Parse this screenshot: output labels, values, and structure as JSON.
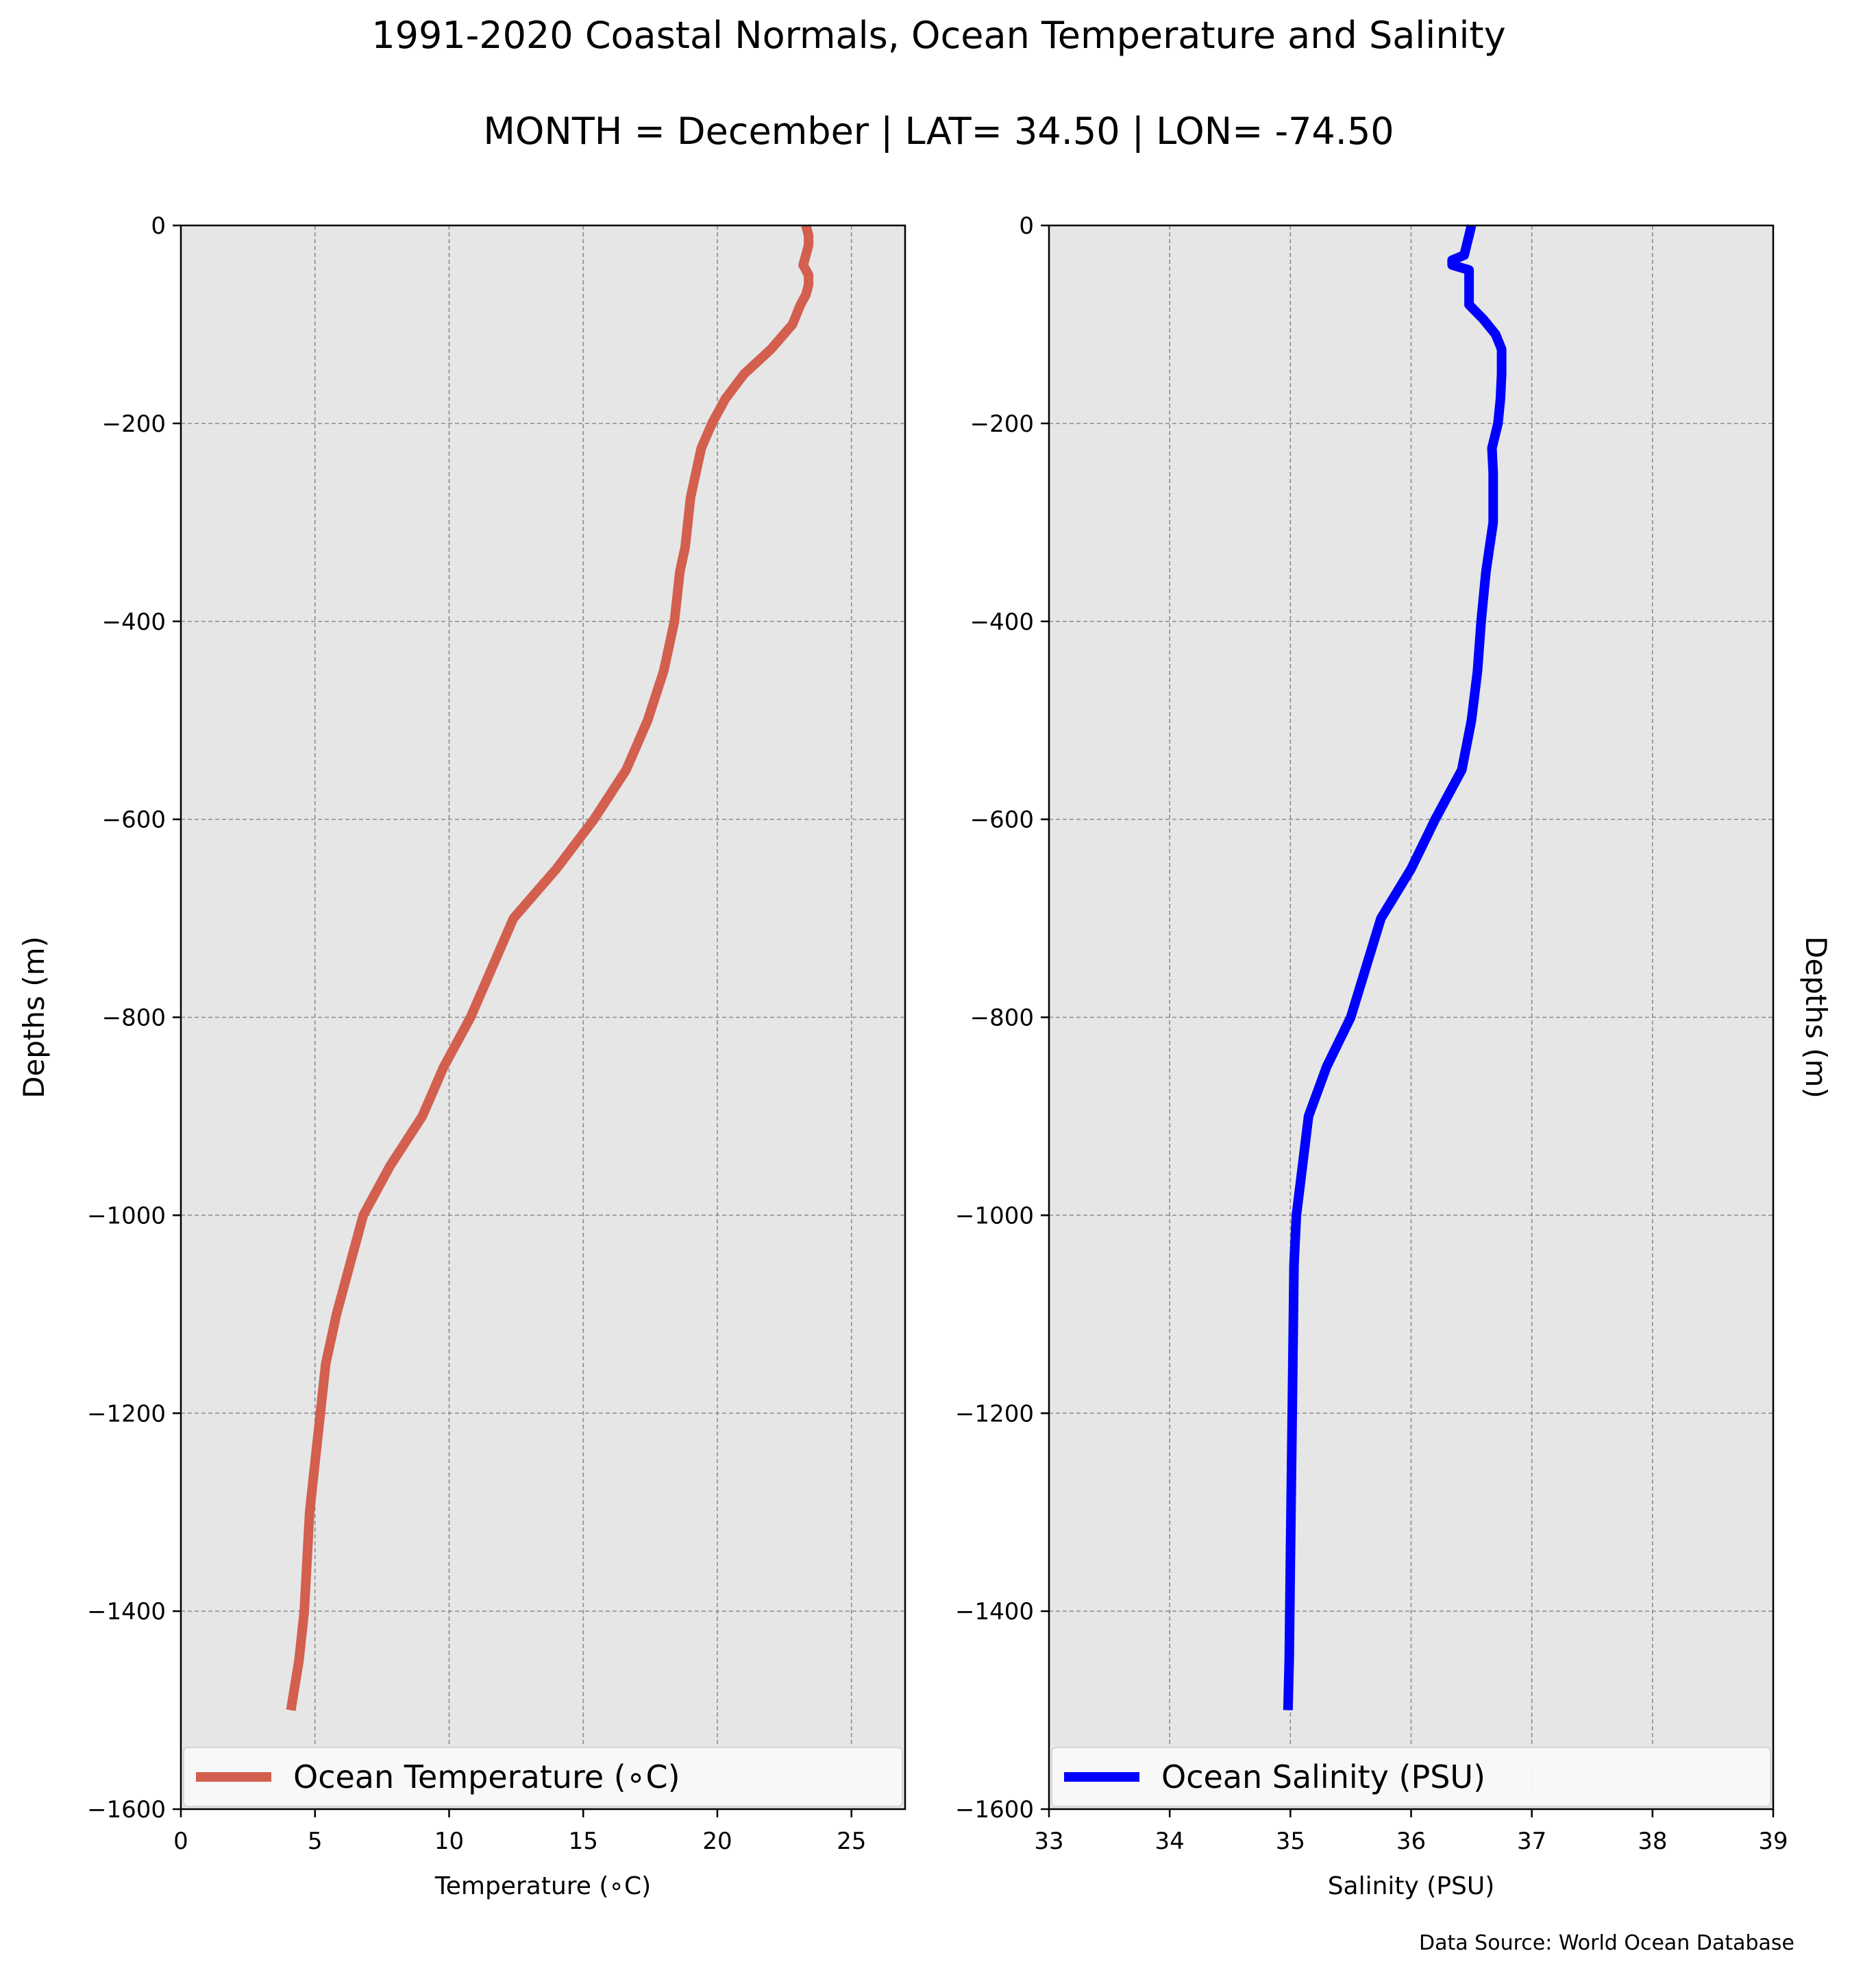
{
  "title": "1991-2020 Coastal Normals, Ocean Temperature and Salinity",
  "subtitle": "MONTH = December | LAT= 34.50 | LON= -74.50",
  "source": "Data Source: World Ocean Database",
  "colors": {
    "temperature": "#d35f4e",
    "salinity": "#0000ff",
    "axes_bg": "#e6e6e6",
    "grid": "#8c8c8c"
  },
  "chart_data": [
    {
      "type": "line",
      "xlabel": "Temperature ($^\\circ$C)",
      "xlabel_display": "Temperature (∘C)",
      "ylabel": "Depths (m)",
      "xlim": [
        0,
        27
      ],
      "ylim": [
        -1600,
        0
      ],
      "xticks": [
        0,
        5,
        10,
        15,
        20,
        25
      ],
      "yticks": [
        0,
        -200,
        -400,
        -600,
        -800,
        -1000,
        -1200,
        -1400,
        -1600
      ],
      "grid": true,
      "legend_position": "lower-center",
      "series": [
        {
          "name": "Ocean Temperature (∘C)",
          "color": "#d35f4e",
          "x": [
            23.3,
            23.4,
            23.4,
            23.3,
            23.2,
            23.4,
            23.4,
            23.3,
            23.1,
            22.8,
            22.0,
            21.0,
            20.3,
            19.8,
            19.4,
            19.0,
            18.8,
            18.6,
            18.4,
            18.0,
            17.4,
            16.6,
            15.4,
            14.0,
            12.4,
            10.8,
            9.8,
            9.0,
            7.8,
            6.8,
            6.3,
            5.8,
            5.4,
            5.0,
            4.8,
            4.6,
            4.4,
            4.1
          ],
          "y": [
            0,
            -10,
            -20,
            -30,
            -40,
            -50,
            -60,
            -70,
            -80,
            -100,
            -125,
            -150,
            -175,
            -200,
            -225,
            -275,
            -325,
            -350,
            -400,
            -450,
            -500,
            -550,
            -600,
            -650,
            -700,
            -800,
            -850,
            -900,
            -950,
            -1000,
            -1050,
            -1100,
            -1150,
            -1250,
            -1300,
            -1400,
            -1450,
            -1500
          ]
        }
      ]
    },
    {
      "type": "line",
      "xlabel": "Salinity (PSU)",
      "ylabel": "Depths (m)",
      "xlim": [
        33,
        39
      ],
      "ylim": [
        -1600,
        0
      ],
      "xticks": [
        33,
        34,
        35,
        36,
        37,
        38,
        39
      ],
      "yticks": [
        0,
        -200,
        -400,
        -600,
        -800,
        -1000,
        -1200,
        -1400,
        -1600
      ],
      "grid": true,
      "legend_position": "lower-center",
      "series": [
        {
          "name": "Ocean Salinity (PSU)",
          "color": "#0000ff",
          "x": [
            36.5,
            36.48,
            36.46,
            36.44,
            36.34,
            36.34,
            36.48,
            36.48,
            36.48,
            36.48,
            36.6,
            36.7,
            36.75,
            36.75,
            36.74,
            36.72,
            36.67,
            36.68,
            36.68,
            36.62,
            36.58,
            36.55,
            36.5,
            36.42,
            36.2,
            36.0,
            35.75,
            35.5,
            35.3,
            35.15,
            35.1,
            35.05,
            35.03,
            35.02,
            35.01,
            35.0,
            34.99,
            34.98
          ],
          "y": [
            0,
            -10,
            -20,
            -30,
            -35,
            -40,
            -45,
            -50,
            -60,
            -80,
            -95,
            -110,
            -125,
            -150,
            -175,
            -200,
            -225,
            -250,
            -300,
            -350,
            -400,
            -450,
            -500,
            -550,
            -600,
            -650,
            -700,
            -800,
            -850,
            -900,
            -950,
            -1000,
            -1050,
            -1150,
            -1250,
            -1350,
            -1450,
            -1500
          ]
        }
      ]
    }
  ]
}
